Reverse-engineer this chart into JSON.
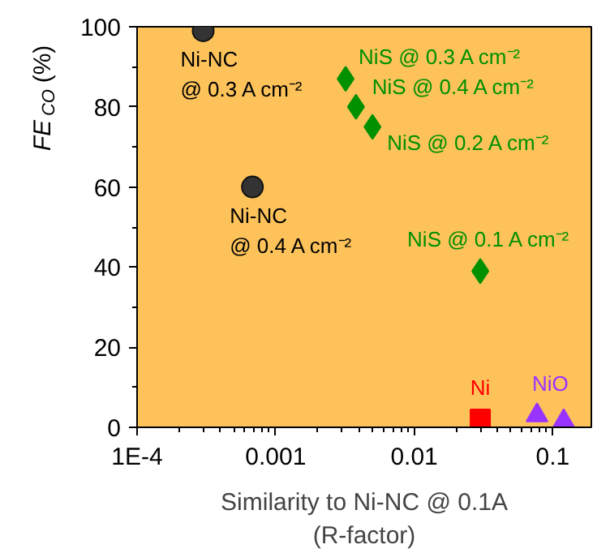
{
  "chart_data": {
    "type": "scatter",
    "xlabel": "Similarity to Ni-NC @ 0.1A\n(R-factor)",
    "ylabel": "FE$_{CO}$ (%)",
    "log": "x",
    "xlim": [
      0.0001,
      0.19
    ],
    "xticks": [
      {
        "value": 0.0001,
        "label": "1E-4"
      },
      0.001,
      0.01,
      0.1
    ],
    "ylim": [
      0,
      100
    ],
    "yticks": [
      0,
      20,
      40,
      60,
      80,
      100
    ],
    "grid": false,
    "legend": false,
    "series": [
      {
        "color": "#333333",
        "marker": "circle",
        "x": [
          0.0003,
          0.00068
        ],
        "values": [
          99,
          60
        ]
      },
      {
        "color": "#009000",
        "marker": "diamond",
        "x": [
          0.0032,
          0.0038,
          0.005,
          0.03
        ],
        "values": [
          87,
          80,
          75,
          39
        ]
      },
      {
        "name": "Ni",
        "color": "#ff0000",
        "marker": "square",
        "x": [
          0.03
        ],
        "values": [
          2
        ]
      },
      {
        "name": "NiO",
        "color": "#9933ff",
        "marker": "triangle",
        "x": [
          0.077,
          0.12
        ],
        "values": [
          3,
          1.5
        ]
      }
    ],
    "annotations": [
      {
        "text": "Ni-NC\n@ 0.3 A cm⁻²",
        "x": 0.0003,
        "y": 99
      },
      {
        "text": "Ni-NC\n@ 0.4 A cm⁻²",
        "x": 0.00068,
        "y": 60
      },
      {
        "text": "NiS @ 0.3 A cm⁻²",
        "x": 0.0032,
        "y": 87
      },
      {
        "text": "NiS @ 0.4 A cm⁻²",
        "x": 0.0038,
        "y": 80
      },
      {
        "text": "NiS @ 0.2 A cm⁻²",
        "x": 0.005,
        "y": 75
      },
      {
        "text": "NiS @ 0.1 A cm⁻²",
        "x": 0.03,
        "y": 39
      }
    ]
  }
}
